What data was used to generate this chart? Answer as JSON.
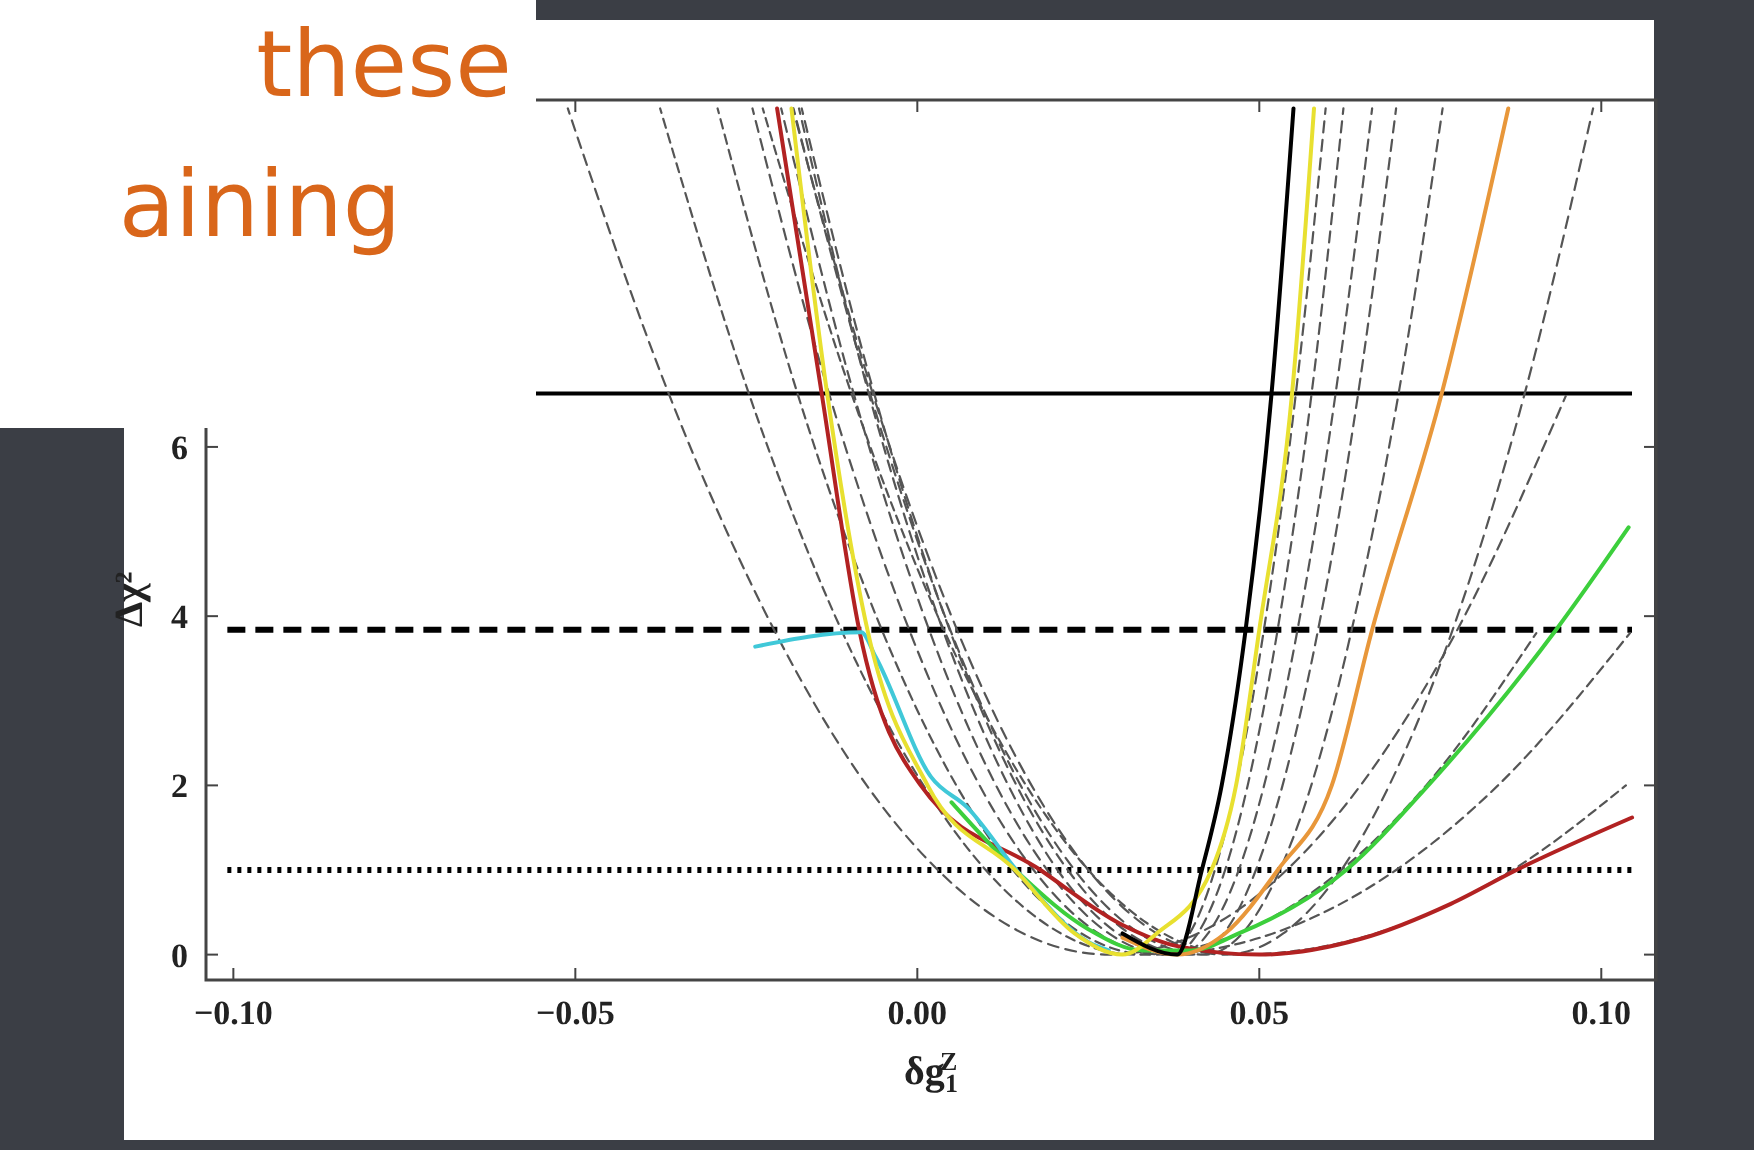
{
  "chart_data": {
    "type": "line",
    "xlabel": "δg$_{1}$$^{Z}$",
    "ylabel": "Δχ²",
    "annotations": [
      "these",
      "aining"
    ],
    "xlim": [
      -0.104,
      0.108
    ],
    "ylim": [
      -0.3,
      10.1
    ],
    "xticks": [
      {
        "value": -0.1,
        "label": "−0.10"
      },
      {
        "value": -0.05,
        "label": "−0.05"
      },
      {
        "value": 0,
        "label": "0.00"
      },
      {
        "value": 0.05,
        "label": "0.05"
      },
      {
        "value": 0.1,
        "label": "0.10"
      }
    ],
    "yticks": [
      0,
      2,
      4,
      6
    ],
    "grid": false,
    "marker": "none",
    "ref_lines": [
      {
        "axis": "y",
        "value": 6.63,
        "color": "#000000",
        "line_style": "solid"
      },
      {
        "axis": "y",
        "value": 3.84,
        "color": "#000000",
        "line_style": "dashed"
      },
      {
        "axis": "y",
        "value": 1,
        "color": "#000000",
        "line_style": "dotted"
      }
    ],
    "series": [
      {
        "color": "#555555",
        "line_style": "dashed",
        "x": [
          -0.0511,
          -0.0362,
          -0.0207,
          -0.0074,
          0.003,
          0.0155,
          0.028,
          0.041,
          0.054,
          0.0648,
          0.0787,
          0.0948
        ],
        "values": [
          10,
          6.6,
          3.8,
          2,
          1,
          0.25,
          0,
          0.25,
          1,
          2,
          3.8,
          6.6
        ]
      },
      {
        "color": "#555555",
        "line_style": "dashed",
        "x": [
          -0.0376,
          -0.0245,
          -0.0109,
          0.0009,
          0.01,
          0.021,
          0.032,
          0.047,
          0.062,
          0.0744,
          0.0905
        ],
        "values": [
          10,
          6.6,
          3.8,
          2,
          1,
          0.25,
          0,
          0.25,
          1,
          2,
          3.8
        ]
      },
      {
        "color": "#555555",
        "line_style": "dashed",
        "x": [
          -0.0292,
          -0.0174,
          -0.005,
          0.0057,
          0.014,
          0.024,
          0.034,
          0.052,
          0.07,
          0.0849,
          0.1042
        ],
        "values": [
          10,
          6.6,
          3.8,
          2,
          1,
          0.25,
          0,
          0.25,
          1,
          2,
          3.8
        ]
      },
      {
        "color": "#555555",
        "line_style": "dashed",
        "x": [
          -0.0241,
          -0.0128,
          -0.001,
          0.0091,
          0.017,
          0.0265,
          0.036,
          0.0398,
          0.0435,
          0.0466,
          0.0506,
          0.0553,
          0.0597
        ],
        "values": [
          10,
          6.6,
          3.8,
          2,
          1,
          0.25,
          0,
          0.25,
          1,
          2,
          3.8,
          6.6,
          10
        ]
      },
      {
        "color": "#555555",
        "line_style": "dashed",
        "x": [
          -0.0199,
          -0.0092,
          0.0019,
          0.0115,
          0.019,
          0.028,
          0.037,
          0.041,
          0.045,
          0.0483,
          0.0526,
          0.0576,
          0.0623
        ],
        "values": [
          10,
          6.6,
          3.8,
          2,
          1,
          0.25,
          0,
          0.25,
          1,
          2,
          3.8,
          6.6,
          10
        ]
      },
      {
        "color": "#555555",
        "line_style": "dashed",
        "x": [
          -0.0173,
          -0.007,
          0.0039,
          0.0133,
          0.0205,
          0.0293,
          0.038,
          0.0425,
          0.047,
          0.0507,
          0.0555,
          0.0611,
          0.0665
        ],
        "values": [
          10,
          6.6,
          3.8,
          2,
          1,
          0.25,
          0,
          0.25,
          1,
          2,
          3.8,
          6.6,
          10
        ]
      },
      {
        "color": "#555555",
        "line_style": "dashed",
        "x": [
          -0.0169,
          -0.0062,
          0.0049,
          0.0145,
          0.022,
          0.031,
          0.04,
          0.0448,
          0.0495,
          0.0534,
          0.0585,
          0.0644,
          0.07
        ],
        "values": [
          10,
          6.6,
          3.8,
          2,
          1,
          0.25,
          0,
          0.25,
          1,
          2,
          3.8,
          6.6,
          10
        ]
      },
      {
        "color": "#555555",
        "line_style": "dashed",
        "x": [
          -0.0181,
          -0.0068,
          0.005,
          0.0151,
          0.023,
          0.0325,
          0.042,
          0.0475,
          0.053,
          0.0576,
          0.0634,
          0.0703,
          0.0768
        ],
        "values": [
          10,
          6.6,
          3.8,
          2,
          1,
          0.25,
          0,
          0.25,
          1,
          2,
          3.8,
          6.6,
          10
        ]
      },
      {
        "color": "#555555",
        "line_style": "dashed",
        "x": [
          -0.0182,
          -0.0064,
          0.006,
          0.0167,
          0.025,
          0.035,
          0.045,
          0.0535,
          0.062,
          0.069,
          0.0781,
          0.0887,
          0.0988
        ],
        "values": [
          10,
          6.6,
          3.8,
          2,
          1,
          0.25,
          0,
          0.25,
          1,
          2,
          3.8,
          6.6,
          10
        ]
      },
      {
        "color": "#555555",
        "line_style": "dashed",
        "x": [
          -0.0226,
          -0.0095,
          0.0041,
          0.0159,
          0.025,
          0.036,
          0.047,
          0.067,
          0.087,
          0.1036
        ],
        "values": [
          10,
          6.6,
          3.8,
          2,
          1,
          0.25,
          0,
          0.25,
          1,
          2
        ]
      },
      {
        "color": "#b22222",
        "line_style": "solid",
        "x": [
          -0.0205,
          -0.014,
          -0.0085,
          0.0005,
          0.018,
          0.03,
          0.038,
          0.05,
          0.065,
          0.078,
          0.0876,
          0.1045
        ],
        "values": [
          10,
          6.64,
          3.84,
          2,
          1,
          0.35,
          0.1,
          0,
          0.19,
          0.6,
          1,
          1.62
        ]
      },
      {
        "color": "#3ccf3c",
        "line_style": "solid",
        "x": [
          0.005,
          0.015,
          0.025,
          0.033,
          0.04,
          0.047,
          0.0627,
          0.0747,
          0.0934,
          0.104
        ],
        "values": [
          1.8,
          0.95,
          0.3,
          0.05,
          0.05,
          0.25,
          1,
          2,
          3.84,
          5.05
        ]
      },
      {
        "color": "#40c8d8",
        "line_style": "solid",
        "x": [
          -0.0237,
          -0.0082,
          -0.0061,
          0.002,
          0.0073,
          0.015,
          0.025,
          0.028
        ],
        "values": [
          3.64,
          3.81,
          3.52,
          2.1,
          1.74,
          0.95,
          0.15,
          0.05
        ]
      },
      {
        "color": "#e8973a",
        "line_style": "solid",
        "x": [
          0.03,
          0.038,
          0.045,
          0.0527,
          0.0606,
          0.0665,
          0.0767,
          0.0864
        ],
        "values": [
          0.2,
          0,
          0.25,
          1,
          2,
          3.84,
          6.64,
          10
        ]
      },
      {
        "color": "#e8e030",
        "line_style": "solid",
        "x": [
          -0.0184,
          -0.0132,
          -0.0073,
          0.0015,
          0.0143,
          0.023,
          0.03,
          0.035,
          0.043,
          0.0466,
          0.05,
          0.0548,
          0.058
        ],
        "values": [
          10,
          6.64,
          3.84,
          2,
          1,
          0.25,
          0,
          0.25,
          1,
          2,
          3.84,
          6.64,
          10
        ]
      },
      {
        "color": "#000000",
        "line_style": "solid",
        "x": [
          0.03,
          0.038,
          0.0416,
          0.0445,
          0.048,
          0.0518,
          0.055
        ],
        "values": [
          0.25,
          0,
          1,
          2,
          3.84,
          6.64,
          10
        ]
      }
    ]
  }
}
